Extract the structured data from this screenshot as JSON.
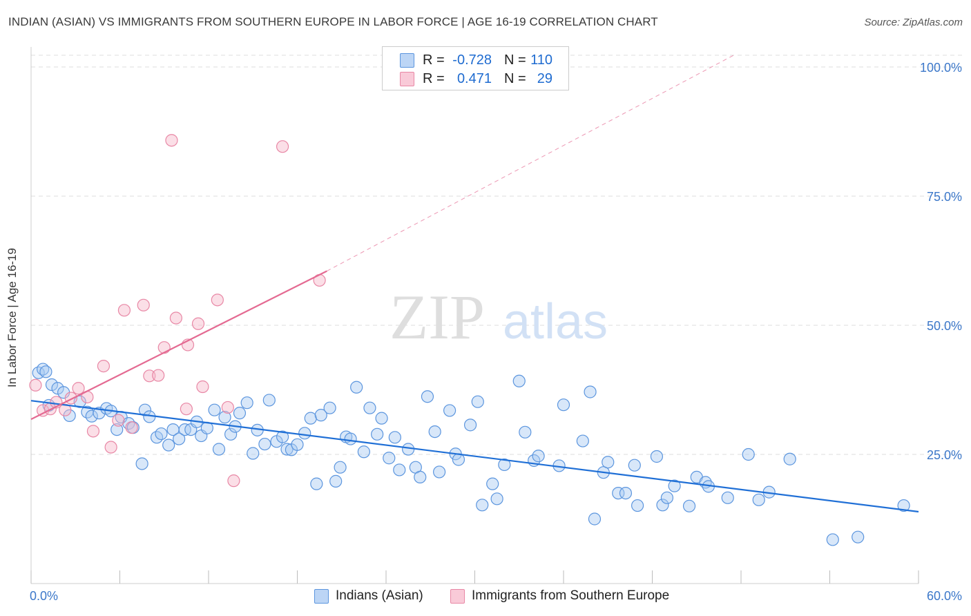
{
  "header": {
    "title": "INDIAN (ASIAN) VS IMMIGRANTS FROM SOUTHERN EUROPE IN LABOR FORCE | AGE 16-19 CORRELATION CHART",
    "source": "Source: ZipAtlas.com"
  },
  "watermark": {
    "zip": "ZIP",
    "atlas": "atlas"
  },
  "legend": {
    "rows": [
      {
        "r_label": "R =",
        "r_value": "-0.728",
        "n_label": "N =",
        "n_value": "110",
        "color": "#a9c9f2"
      },
      {
        "r_label": "R =",
        "r_value": "0.471",
        "n_label": "N =",
        "n_value": "29",
        "color": "#f6b8ca"
      }
    ]
  },
  "bottom_legend": {
    "items": [
      {
        "label": "Indians (Asian)",
        "color": "#a9c9f2"
      },
      {
        "label": "Immigrants from Southern Europe",
        "color": "#f6b8ca"
      }
    ]
  },
  "chart_data": {
    "type": "scatter",
    "title": "INDIAN (ASIAN) VS IMMIGRANTS FROM SOUTHERN EUROPE IN LABOR FORCE | AGE 16-19 CORRELATION CHART",
    "ylabel": "In Labor Force | Age 16-19",
    "xlabel": "",
    "xlim": [
      0,
      60
    ],
    "ylim": [
      0,
      100
    ],
    "x_tick_labels": [
      "0.0%",
      "60.0%"
    ],
    "y_tick_labels": [
      "100.0%",
      "75.0%",
      "50.0%",
      "25.0%"
    ],
    "y_ticks": [
      100,
      75,
      50,
      25
    ],
    "grid": true,
    "legend_position": "top-center",
    "series": [
      {
        "name": "Indians (Asian)",
        "color": "#a9c9f2",
        "stroke": "#5b95de",
        "trend": {
          "x": [
            0,
            60
          ],
          "y": [
            35.4,
            13.9
          ],
          "color": "#1f6fd6"
        },
        "points": [
          [
            0.5,
            40.8
          ],
          [
            0.8,
            41.5
          ],
          [
            1.0,
            41.0
          ],
          [
            1.4,
            38.5
          ],
          [
            1.8,
            37.8
          ],
          [
            2.2,
            37.0
          ],
          [
            2.6,
            32.5
          ],
          [
            3.3,
            35.2
          ],
          [
            3.8,
            33.2
          ],
          [
            4.1,
            32.4
          ],
          [
            4.6,
            33.0
          ],
          [
            5.1,
            33.9
          ],
          [
            5.4,
            33.4
          ],
          [
            5.8,
            29.8
          ],
          [
            6.1,
            32.2
          ],
          [
            6.6,
            31.0
          ],
          [
            6.9,
            30.2
          ],
          [
            7.5,
            23.2
          ],
          [
            7.7,
            33.6
          ],
          [
            8.0,
            32.3
          ],
          [
            8.5,
            28.3
          ],
          [
            8.8,
            29.0
          ],
          [
            9.3,
            26.8
          ],
          [
            9.6,
            29.8
          ],
          [
            10.0,
            28.0
          ],
          [
            10.4,
            29.8
          ],
          [
            10.8,
            29.8
          ],
          [
            11.2,
            31.3
          ],
          [
            11.5,
            28.6
          ],
          [
            11.9,
            30.1
          ],
          [
            12.4,
            33.6
          ],
          [
            12.7,
            26.0
          ],
          [
            13.1,
            32.2
          ],
          [
            13.5,
            28.9
          ],
          [
            13.8,
            30.4
          ],
          [
            14.1,
            33.0
          ],
          [
            14.6,
            35.0
          ],
          [
            15.0,
            25.2
          ],
          [
            15.3,
            29.7
          ],
          [
            15.8,
            27.0
          ],
          [
            16.1,
            35.5
          ],
          [
            16.6,
            27.5
          ],
          [
            17.0,
            28.4
          ],
          [
            17.3,
            26.0
          ],
          [
            17.6,
            25.9
          ],
          [
            18.0,
            26.9
          ],
          [
            18.5,
            29.1
          ],
          [
            18.9,
            32.0
          ],
          [
            19.3,
            19.3
          ],
          [
            19.6,
            32.6
          ],
          [
            20.2,
            34.0
          ],
          [
            20.6,
            19.8
          ],
          [
            20.9,
            22.5
          ],
          [
            21.3,
            28.4
          ],
          [
            21.6,
            28.0
          ],
          [
            22.0,
            38.0
          ],
          [
            22.5,
            25.5
          ],
          [
            22.9,
            34.0
          ],
          [
            23.4,
            28.9
          ],
          [
            23.7,
            32.0
          ],
          [
            24.2,
            24.3
          ],
          [
            24.6,
            28.3
          ],
          [
            24.9,
            22.0
          ],
          [
            25.5,
            26.0
          ],
          [
            26.0,
            22.5
          ],
          [
            26.3,
            20.6
          ],
          [
            26.8,
            36.2
          ],
          [
            27.3,
            29.4
          ],
          [
            27.6,
            21.6
          ],
          [
            28.3,
            33.5
          ],
          [
            28.7,
            25.1
          ],
          [
            28.9,
            24.0
          ],
          [
            29.7,
            30.7
          ],
          [
            30.2,
            35.2
          ],
          [
            30.5,
            15.2
          ],
          [
            31.2,
            19.3
          ],
          [
            31.5,
            16.4
          ],
          [
            32.0,
            23.0
          ],
          [
            33.0,
            39.2
          ],
          [
            33.4,
            29.3
          ],
          [
            34.0,
            23.8
          ],
          [
            34.3,
            24.7
          ],
          [
            35.7,
            22.8
          ],
          [
            36.0,
            34.6
          ],
          [
            37.3,
            27.6
          ],
          [
            37.8,
            37.1
          ],
          [
            38.1,
            12.5
          ],
          [
            38.7,
            21.5
          ],
          [
            39.0,
            23.5
          ],
          [
            39.7,
            17.5
          ],
          [
            40.2,
            17.5
          ],
          [
            40.8,
            22.9
          ],
          [
            41.0,
            15.1
          ],
          [
            42.3,
            24.6
          ],
          [
            42.7,
            15.2
          ],
          [
            43.0,
            16.6
          ],
          [
            43.5,
            18.9
          ],
          [
            44.5,
            15.0
          ],
          [
            45.0,
            20.6
          ],
          [
            45.6,
            19.6
          ],
          [
            45.8,
            18.8
          ],
          [
            47.1,
            16.6
          ],
          [
            48.5,
            25.0
          ],
          [
            49.2,
            16.2
          ],
          [
            49.9,
            17.7
          ],
          [
            51.3,
            24.1
          ],
          [
            54.2,
            8.5
          ],
          [
            55.9,
            9.0
          ],
          [
            59.0,
            15.1
          ],
          [
            1.2,
            34.5
          ]
        ]
      },
      {
        "name": "Immigrants from Southern Europe",
        "color": "#f6b8ca",
        "stroke": "#e887a5",
        "trend": {
          "x": [
            0,
            20
          ],
          "y": [
            31.8,
            60.5
          ],
          "color": "#e46a92",
          "extension": {
            "x": [
              20,
              47.5
            ],
            "y": [
              60.5,
              100.0
            ]
          }
        },
        "points": [
          [
            0.3,
            38.4
          ],
          [
            0.8,
            33.5
          ],
          [
            1.3,
            33.8
          ],
          [
            1.7,
            35.1
          ],
          [
            2.3,
            33.6
          ],
          [
            2.7,
            35.9
          ],
          [
            3.2,
            37.8
          ],
          [
            3.8,
            36.1
          ],
          [
            4.2,
            29.5
          ],
          [
            4.9,
            42.1
          ],
          [
            5.4,
            26.4
          ],
          [
            5.9,
            31.6
          ],
          [
            6.3,
            52.9
          ],
          [
            6.8,
            30.2
          ],
          [
            7.6,
            53.9
          ],
          [
            8.0,
            40.2
          ],
          [
            8.6,
            40.3
          ],
          [
            9.0,
            45.7
          ],
          [
            9.5,
            85.8
          ],
          [
            9.8,
            51.4
          ],
          [
            10.5,
            33.8
          ],
          [
            10.6,
            46.2
          ],
          [
            11.3,
            50.3
          ],
          [
            11.6,
            38.1
          ],
          [
            12.6,
            54.9
          ],
          [
            13.3,
            34.1
          ],
          [
            13.7,
            19.9
          ],
          [
            17.0,
            84.6
          ],
          [
            19.5,
            58.7
          ]
        ]
      }
    ]
  }
}
